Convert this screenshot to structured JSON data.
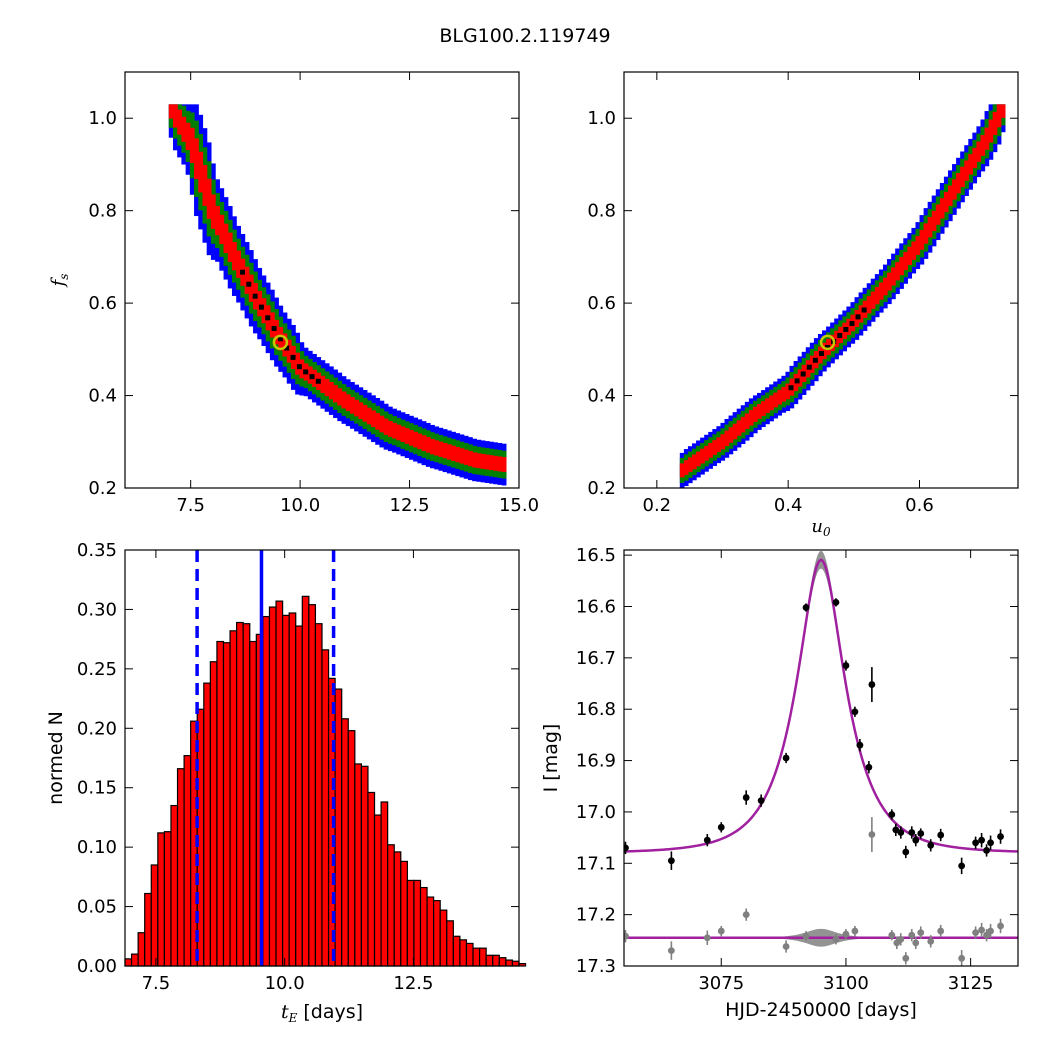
{
  "figure": {
    "title": "BLG100.2.119749"
  },
  "chart_data": [
    {
      "id": "panel-te-fs",
      "type": "heatmap",
      "xlabel": "",
      "ylabel": "f_s",
      "xlim": [
        6.0,
        15.0
      ],
      "ylim": [
        0.2,
        1.1
      ],
      "xticks": [
        7.5,
        10.0,
        12.5,
        15.0
      ],
      "xtick_labels": [
        "7.5",
        "10.0",
        "12.5",
        "15.0"
      ],
      "yticks": [
        0.2,
        0.4,
        0.6,
        0.8,
        1.0
      ],
      "ytick_labels": [
        "0.2",
        "0.4",
        "0.6",
        "0.8",
        "1.0"
      ],
      "ridge": [
        [
          7.0,
          1.03
        ],
        [
          7.5,
          0.95
        ],
        [
          8.0,
          0.8
        ],
        [
          8.5,
          0.7
        ],
        [
          9.0,
          0.61
        ],
        [
          9.5,
          0.53
        ],
        [
          10.0,
          0.46
        ],
        [
          11.0,
          0.39
        ],
        [
          12.0,
          0.33
        ],
        [
          13.0,
          0.29
        ],
        [
          14.0,
          0.26
        ],
        [
          14.7,
          0.25
        ]
      ],
      "best_fit": {
        "x": 9.55,
        "y": 0.515
      },
      "levels": [
        "3sigma",
        "2sigma",
        "1sigma",
        "max"
      ],
      "colors": {
        "3sigma": "#0000ff",
        "2sigma": "#007f00",
        "1sigma": "#ff0000",
        "max": "#000000"
      },
      "grid": false
    },
    {
      "id": "panel-u0-fs",
      "type": "heatmap",
      "xlabel": "u_0",
      "ylabel": "",
      "xlim": [
        0.15,
        0.75
      ],
      "ylim": [
        0.2,
        1.1
      ],
      "xticks": [
        0.2,
        0.4,
        0.6
      ],
      "xtick_labels": [
        "0.2",
        "0.4",
        "0.6"
      ],
      "yticks": [
        0.2,
        0.4,
        0.6,
        0.8,
        1.0
      ],
      "ytick_labels": [
        "0.2",
        "0.4",
        "0.6",
        "0.8",
        "1.0"
      ],
      "ridge": [
        [
          0.235,
          0.235
        ],
        [
          0.3,
          0.3
        ],
        [
          0.35,
          0.36
        ],
        [
          0.4,
          0.41
        ],
        [
          0.45,
          0.49
        ],
        [
          0.5,
          0.56
        ],
        [
          0.55,
          0.64
        ],
        [
          0.6,
          0.73
        ],
        [
          0.65,
          0.84
        ],
        [
          0.7,
          0.95
        ],
        [
          0.73,
          1.03
        ]
      ],
      "best_fit": {
        "x": 0.46,
        "y": 0.515
      },
      "levels": [
        "3sigma",
        "2sigma",
        "1sigma",
        "max"
      ],
      "colors": {
        "3sigma": "#0000ff",
        "2sigma": "#007f00",
        "1sigma": "#ff0000",
        "max": "#000000"
      },
      "grid": false
    },
    {
      "id": "panel-hist",
      "type": "bar",
      "xlabel": "t_E [days]",
      "ylabel": "normed N",
      "xlim": [
        6.9,
        14.55
      ],
      "ylim": [
        0.0,
        0.35
      ],
      "xticks": [
        7.5,
        10.0,
        12.5
      ],
      "xtick_labels": [
        "7.5",
        "10.0",
        "12.5"
      ],
      "yticks": [
        0.0,
        0.05,
        0.1,
        0.15,
        0.2,
        0.25,
        0.3,
        0.35
      ],
      "ytick_labels": [
        "0.00",
        "0.05",
        "0.10",
        "0.15",
        "0.20",
        "0.25",
        "0.30",
        "0.35"
      ],
      "bin_start": 6.9,
      "bin_width": 0.1275,
      "values": [
        0.006,
        0.01,
        0.028,
        0.061,
        0.085,
        0.112,
        0.113,
        0.135,
        0.166,
        0.177,
        0.206,
        0.216,
        0.238,
        0.256,
        0.273,
        0.272,
        0.282,
        0.289,
        0.288,
        0.273,
        0.279,
        0.294,
        0.302,
        0.307,
        0.295,
        0.297,
        0.286,
        0.311,
        0.304,
        0.288,
        0.266,
        0.242,
        0.233,
        0.208,
        0.198,
        0.17,
        0.168,
        0.146,
        0.127,
        0.138,
        0.102,
        0.096,
        0.088,
        0.072,
        0.072,
        0.066,
        0.058,
        0.055,
        0.047,
        0.038,
        0.025,
        0.022,
        0.019,
        0.015,
        0.015,
        0.009,
        0.009,
        0.007,
        0.005,
        0.004,
        0.002
      ],
      "vlines": [
        {
          "x": 8.3,
          "style": "dashed",
          "color": "#0000ff"
        },
        {
          "x": 9.55,
          "style": "solid",
          "color": "#0000ff"
        },
        {
          "x": 10.95,
          "style": "dashed",
          "color": "#0000ff"
        }
      ],
      "bar_color": "#ff0000",
      "grid": false
    },
    {
      "id": "panel-lightcurve",
      "type": "scatter",
      "xlabel": "HJD-2450000 [days]",
      "ylabel": "I [mag]",
      "xlim": [
        3055.5,
        3134.5
      ],
      "ylim": [
        17.3,
        16.49
      ],
      "y_inverted": true,
      "xticks": [
        3075,
        3100,
        3125
      ],
      "xtick_labels": [
        "3075",
        "3100",
        "3125"
      ],
      "yticks": [
        16.5,
        16.6,
        16.7,
        16.8,
        16.9,
        17.0,
        17.1,
        17.2,
        17.3
      ],
      "ytick_labels": [
        "16.5",
        "16.6",
        "16.7",
        "16.8",
        "16.9",
        "17.0",
        "17.1",
        "17.2",
        "17.3"
      ],
      "model": {
        "t0": 3095.0,
        "tE": 9.55,
        "u0": 0.46,
        "fs": 0.515,
        "baseline_mag": 17.08,
        "color": "#a020a0",
        "band_color": "#808080"
      },
      "residual_offset": 17.245,
      "series": [
        {
          "color": "#000000",
          "points": [
            [
              3055.8,
              17.07,
              0.012
            ],
            [
              3065.0,
              17.095,
              0.018
            ],
            [
              3072.2,
              17.055,
              0.012
            ],
            [
              3075.0,
              17.03,
              0.01
            ],
            [
              3080.0,
              16.972,
              0.014
            ],
            [
              3083.0,
              16.978,
              0.012
            ],
            [
              3088.0,
              16.895,
              0.01
            ],
            [
              3092.0,
              16.602,
              0.008
            ],
            [
              3098.0,
              16.592,
              0.008
            ],
            [
              3100.0,
              16.715,
              0.01
            ],
            [
              3101.8,
              16.805,
              0.01
            ],
            [
              3102.8,
              16.87,
              0.012
            ],
            [
              3104.6,
              16.913,
              0.012
            ],
            [
              3105.2,
              16.752,
              0.034
            ],
            [
              3109.2,
              17.005,
              0.01
            ],
            [
              3110.0,
              17.035,
              0.012
            ],
            [
              3111.0,
              17.04,
              0.012
            ],
            [
              3112.0,
              17.078,
              0.012
            ],
            [
              3113.2,
              17.04,
              0.012
            ],
            [
              3114.0,
              17.055,
              0.012
            ],
            [
              3115.0,
              17.042,
              0.01
            ],
            [
              3117.0,
              17.065,
              0.012
            ],
            [
              3119.0,
              17.045,
              0.012
            ],
            [
              3123.2,
              17.105,
              0.016
            ],
            [
              3126.0,
              17.06,
              0.012
            ],
            [
              3127.2,
              17.055,
              0.014
            ],
            [
              3128.2,
              17.075,
              0.012
            ],
            [
              3129.0,
              17.06,
              0.014
            ],
            [
              3131.0,
              17.048,
              0.014
            ]
          ]
        },
        {
          "color": "#808080",
          "points": [
            [
              3055.8,
              17.242,
              0.012
            ],
            [
              3065.0,
              17.27,
              0.018
            ],
            [
              3072.2,
              17.245,
              0.014
            ],
            [
              3075.0,
              17.232,
              0.01
            ],
            [
              3080.0,
              17.2,
              0.012
            ],
            [
              3088.0,
              17.262,
              0.012
            ],
            [
              3092.0,
              17.242,
              0.01
            ],
            [
              3098.0,
              17.248,
              0.01
            ],
            [
              3100.0,
              17.238,
              0.01
            ],
            [
              3101.8,
              17.232,
              0.01
            ],
            [
              3105.2,
              17.044,
              0.034
            ],
            [
              3109.2,
              17.24,
              0.01
            ],
            [
              3110.2,
              17.255,
              0.012
            ],
            [
              3111.0,
              17.248,
              0.012
            ],
            [
              3112.0,
              17.285,
              0.012
            ],
            [
              3113.2,
              17.24,
              0.012
            ],
            [
              3114.0,
              17.255,
              0.012
            ],
            [
              3115.0,
              17.235,
              0.012
            ],
            [
              3117.0,
              17.252,
              0.012
            ],
            [
              3119.0,
              17.232,
              0.012
            ],
            [
              3123.2,
              17.285,
              0.016
            ],
            [
              3126.0,
              17.235,
              0.012
            ],
            [
              3127.2,
              17.23,
              0.014
            ],
            [
              3128.2,
              17.24,
              0.012
            ],
            [
              3129.0,
              17.232,
              0.014
            ],
            [
              3131.0,
              17.222,
              0.014
            ]
          ]
        }
      ],
      "grid": false
    }
  ]
}
